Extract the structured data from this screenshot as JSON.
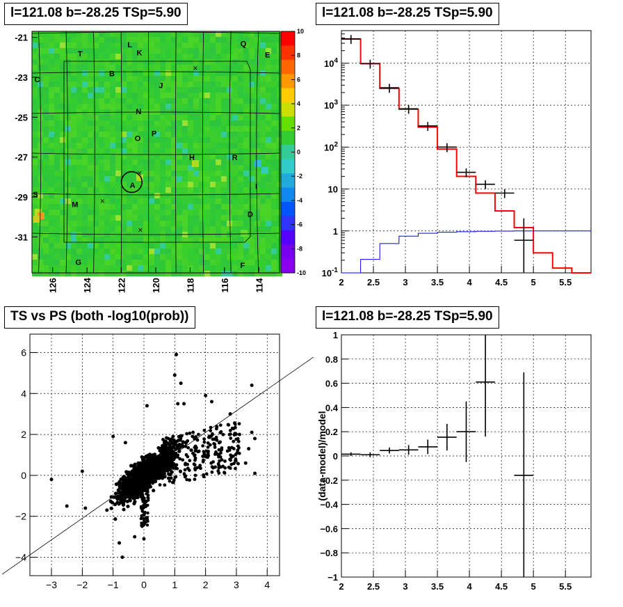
{
  "chart_data": [
    {
      "type": "heatmap",
      "title": "l=121.08 b=-28.25 TSp=5.90",
      "x_ticks": [
        "126",
        "124",
        "122",
        "120",
        "118",
        "116",
        "114"
      ],
      "x_tick_values": [
        126,
        124,
        122,
        120,
        118,
        116,
        114
      ],
      "y_ticks": [
        "-21",
        "-23",
        "-25",
        "-27",
        "-29",
        "-31"
      ],
      "y_tick_values": [
        -21,
        -23,
        -25,
        -27,
        -29,
        -31
      ],
      "xlim": [
        127.2,
        112.8
      ],
      "ylim": [
        -32.8,
        -20.7
      ],
      "colorbar_ticks": [
        "10",
        "8",
        "6",
        "4",
        "2",
        "0",
        "-2",
        "-4",
        "-6",
        "-8",
        "-10"
      ],
      "colorbar_values": [
        10,
        8,
        6,
        4,
        2,
        0,
        -2,
        -4,
        -6,
        -8,
        -10
      ],
      "colorbar_range": [
        -10,
        10
      ],
      "source_labels": [
        {
          "text": "T",
          "l": 124.4,
          "b": -21.95
        },
        {
          "text": "L",
          "l": 121.5,
          "b": -21.5
        },
        {
          "text": "K",
          "l": 120.95,
          "b": -21.9
        },
        {
          "text": "Q",
          "l": 114.9,
          "b": -21.45
        },
        {
          "text": "E",
          "l": 113.5,
          "b": -22.0
        },
        {
          "text": "B",
          "l": 122.55,
          "b": -22.95
        },
        {
          "text": "C",
          "l": 126.9,
          "b": -23.25
        },
        {
          "text": "J",
          "l": 119.7,
          "b": -23.55
        },
        {
          "text": "N",
          "l": 121.0,
          "b": -24.85
        },
        {
          "text": "P",
          "l": 120.1,
          "b": -25.95
        },
        {
          "text": "O",
          "l": 121.05,
          "b": -26.2
        },
        {
          "text": "H",
          "l": 117.9,
          "b": -27.15
        },
        {
          "text": "R",
          "l": 115.4,
          "b": -27.15
        },
        {
          "text": "A",
          "l": 121.35,
          "b": -28.55
        },
        {
          "text": "I",
          "l": 114.15,
          "b": -28.6
        },
        {
          "text": "S",
          "l": 127.0,
          "b": -29.0
        },
        {
          "text": "M",
          "l": 124.7,
          "b": -29.5
        },
        {
          "text": "D",
          "l": 114.5,
          "b": -30.0
        },
        {
          "text": "G",
          "l": 124.5,
          "b": -32.4
        },
        {
          "text": "F",
          "l": 114.95,
          "b": -32.55
        }
      ],
      "x_markers": [
        {
          "l": 117.7,
          "b": -22.55
        },
        {
          "l": 120.95,
          "b": -27.8
        },
        {
          "l": 123.1,
          "b": -29.2
        },
        {
          "l": 120.9,
          "b": -30.65
        }
      ],
      "circle": {
        "l": 121.4,
        "b": -28.25,
        "radius": 0.6
      },
      "colors": {
        "bg": "#33cc33"
      }
    },
    {
      "type": "line",
      "title": "l=121.08 b=-28.25 TSp=5.90",
      "log_y": true,
      "xlim": [
        2,
        5.9
      ],
      "ylim": [
        0.1,
        60000
      ],
      "x_ticks": [
        "2",
        "2.5",
        "3",
        "3.5",
        "4",
        "4.5",
        "5",
        "5.5"
      ],
      "x_tick_values": [
        2,
        2.5,
        3,
        3.5,
        4,
        4.5,
        5,
        5.5
      ],
      "y_ticks": [
        "10^-1",
        "1",
        "10",
        "10^2",
        "10^3",
        "10^4"
      ],
      "y_tick_values": [
        0.1,
        1,
        10,
        100,
        1000,
        10000
      ],
      "grid": true,
      "bin_edges": [
        2.0,
        2.3,
        2.6,
        2.9,
        3.2,
        3.5,
        3.8,
        4.1,
        4.4,
        4.7,
        5.0,
        5.3,
        5.6,
        5.9
      ],
      "series": [
        {
          "values": [
            38000,
            9800,
            2500,
            800,
            300,
            90,
            20,
            8,
            3,
            1.2,
            0.3,
            0.13,
            0.1
          ],
          "color": "#ff0000"
        },
        {
          "values": [
            0.08,
            0.21,
            0.5,
            0.75,
            0.88,
            0.93,
            0.96,
            0.98,
            0.99,
            1.0,
            1.0,
            1.0,
            1.0
          ],
          "color": "#0000ff"
        }
      ],
      "data_points": [
        {
          "x": 2.15,
          "y": 38000
        },
        {
          "x": 2.45,
          "y": 9800
        },
        {
          "x": 2.75,
          "y": 2600
        },
        {
          "x": 3.05,
          "y": 820
        },
        {
          "x": 3.35,
          "y": 320
        },
        {
          "x": 3.65,
          "y": 100
        },
        {
          "x": 3.95,
          "y": 25
        },
        {
          "x": 4.25,
          "y": 13
        },
        {
          "x": 4.55,
          "y": 8
        },
        {
          "x": 4.85,
          "y": 0.6
        }
      ]
    },
    {
      "type": "scatter",
      "title": "TS vs PS (both -log10(prob))",
      "xlim": [
        -3.7,
        4.4
      ],
      "ylim": [
        -4.9,
        6.9
      ],
      "x_ticks": [
        "−3",
        "−2",
        "−1",
        "0",
        "1",
        "2",
        "3",
        "4"
      ],
      "x_tick_values": [
        -3,
        -2,
        -1,
        0,
        1,
        2,
        3,
        4
      ],
      "y_ticks": [
        "−4",
        "−2",
        "0",
        "2",
        "4",
        "6"
      ],
      "y_tick_values": [
        -4,
        -2,
        0,
        2,
        4,
        6
      ],
      "grid": true,
      "fit_line": {
        "slope": 1.05,
        "intercept": 0
      },
      "outliers": [
        {
          "x": 1.05,
          "y": 5.9
        },
        {
          "x": 1.0,
          "y": 4.9
        },
        {
          "x": 1.2,
          "y": 4.5
        },
        {
          "x": 3.5,
          "y": 4.4
        },
        {
          "x": 1.1,
          "y": 3.5
        },
        {
          "x": 2.0,
          "y": 3.9
        },
        {
          "x": 2.2,
          "y": 3.6
        },
        {
          "x": 0.1,
          "y": 3.4
        },
        {
          "x": 1.3,
          "y": 3.5
        },
        {
          "x": 2.8,
          "y": 3.0
        },
        {
          "x": 3.5,
          "y": 2.1
        },
        {
          "x": 3.1,
          "y": 2.0
        },
        {
          "x": 3.6,
          "y": 1.8
        },
        {
          "x": 3.4,
          "y": 1.3
        },
        {
          "x": 3.3,
          "y": 0.6
        },
        {
          "x": 3.6,
          "y": 0.1
        },
        {
          "x": -1.0,
          "y": 1.9
        },
        {
          "x": -0.6,
          "y": 1.6
        },
        {
          "x": -3.0,
          "y": -0.2
        },
        {
          "x": -2.0,
          "y": 0.2
        },
        {
          "x": -2.5,
          "y": -1.5
        },
        {
          "x": -1.9,
          "y": -1.6
        },
        {
          "x": -0.8,
          "y": -3.3
        },
        {
          "x": -0.7,
          "y": -4.0
        },
        {
          "x": 0.0,
          "y": -3.1
        },
        {
          "x": -0.3,
          "y": -3.0
        },
        {
          "x": -1.2,
          "y": -1.7
        }
      ]
    },
    {
      "type": "scatter",
      "title": "l=121.08 b=-28.25 TSp=5.90",
      "ylabel": "(data-model)/model",
      "xlim": [
        2,
        5.9
      ],
      "ylim": [
        -1,
        1
      ],
      "x_ticks": [
        "2",
        "2.5",
        "3",
        "3.5",
        "4",
        "4.5",
        "5",
        "5.5"
      ],
      "x_tick_values": [
        2,
        2.5,
        3,
        3.5,
        4,
        4.5,
        5,
        5.5
      ],
      "y_ticks": [
        "1",
        "0.8",
        "0.6",
        "0.4",
        "0.2",
        "0",
        "−0.2",
        "−0.4",
        "−0.6",
        "−0.8",
        "−1"
      ],
      "y_tick_values": [
        1,
        0.8,
        0.6,
        0.4,
        0.2,
        0,
        -0.2,
        -0.4,
        -0.6,
        -0.8,
        -1
      ],
      "grid": true,
      "points": [
        {
          "x": 2.15,
          "y": 0.015,
          "xerr": 0.15,
          "yerr": 0.015
        },
        {
          "x": 2.45,
          "y": 0.01,
          "xerr": 0.15,
          "yerr": 0.02
        },
        {
          "x": 2.75,
          "y": 0.045,
          "xerr": 0.15,
          "yerr": 0.025
        },
        {
          "x": 3.05,
          "y": 0.05,
          "xerr": 0.15,
          "yerr": 0.04
        },
        {
          "x": 3.35,
          "y": 0.075,
          "xerr": 0.15,
          "yerr": 0.06
        },
        {
          "x": 3.65,
          "y": 0.155,
          "xerr": 0.15,
          "yerr": 0.11
        },
        {
          "x": 3.95,
          "y": 0.2,
          "xerr": 0.15,
          "yerr": 0.25
        },
        {
          "x": 4.25,
          "y": 0.61,
          "xerr": 0.15,
          "yerr": 0.45
        },
        {
          "x": 4.85,
          "y": -0.16,
          "xerr": 0.15,
          "yerr": 0.85
        }
      ]
    }
  ]
}
